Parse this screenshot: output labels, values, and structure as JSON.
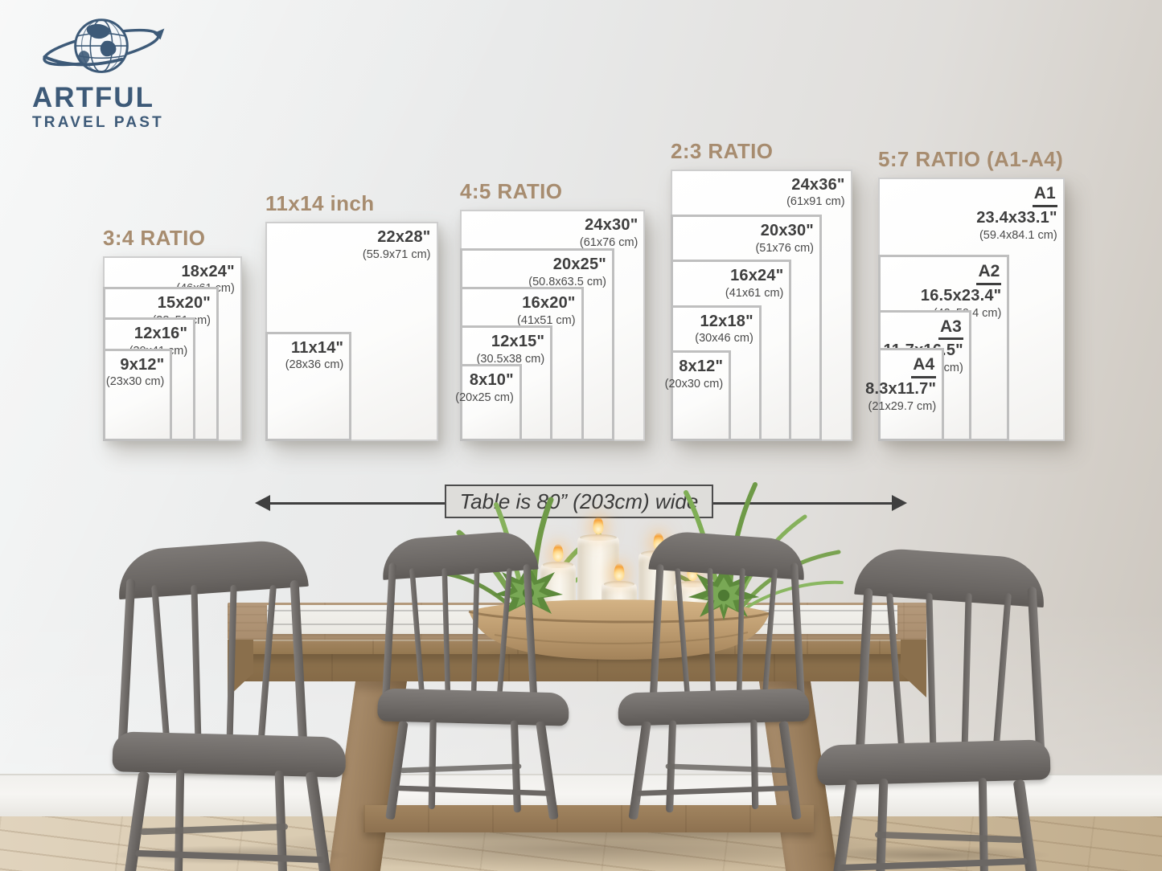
{
  "colors": {
    "title_accent": "#A78C6F",
    "label_text": "#3E3E3E",
    "cm_text": "#4A4A4A",
    "logo_blue": "#3D5A78",
    "sheet_border": "#BFBFBF",
    "arrow": "#3F3F3F"
  },
  "logo": {
    "icon": "globe-orbit-icon",
    "line1": "ARTFUL",
    "line2": "TRAVEL PAST"
  },
  "table_note": {
    "label": "Table is 80” (203cm) wide"
  },
  "chart_data": {
    "type": "size-comparison-diagram",
    "panels": [
      {
        "title": "3:4 RATIO",
        "sheets": [
          {
            "size_in": "18x24\"",
            "size_cm": "(46x61 cm)",
            "w_in": 18,
            "h_in": 24
          },
          {
            "size_in": "15x20\"",
            "size_cm": "(38x51 cm)",
            "w_in": 15,
            "h_in": 20
          },
          {
            "size_in": "12x16\"",
            "size_cm": "(30x41 cm)",
            "w_in": 12,
            "h_in": 16
          },
          {
            "size_in": "9x12\"",
            "size_cm": "(23x30 cm)",
            "w_in": 9,
            "h_in": 12
          }
        ]
      },
      {
        "title": "11x14 inch",
        "sheets": [
          {
            "size_in": "22x28\"",
            "size_cm": "(55.9x71 cm)",
            "w_in": 22,
            "h_in": 28
          },
          {
            "size_in": "11x14\"",
            "size_cm": "(28x36 cm)",
            "w_in": 11,
            "h_in": 14
          }
        ]
      },
      {
        "title": "4:5 RATIO",
        "sheets": [
          {
            "size_in": "24x30\"",
            "size_cm": "(61x76 cm)",
            "w_in": 24,
            "h_in": 30
          },
          {
            "size_in": "20x25\"",
            "size_cm": "(50.8x63.5 cm)",
            "w_in": 20,
            "h_in": 25
          },
          {
            "size_in": "16x20\"",
            "size_cm": "(41x51 cm)",
            "w_in": 16,
            "h_in": 20
          },
          {
            "size_in": "12x15\"",
            "size_cm": "(30.5x38 cm)",
            "w_in": 12,
            "h_in": 15
          },
          {
            "size_in": "8x10\"",
            "size_cm": "(20x25 cm)",
            "w_in": 8,
            "h_in": 10
          }
        ]
      },
      {
        "title": "2:3 RATIO",
        "sheets": [
          {
            "size_in": "24x36\"",
            "size_cm": "(61x91 cm)",
            "w_in": 24,
            "h_in": 36
          },
          {
            "size_in": "20x30\"",
            "size_cm": "(51x76 cm)",
            "w_in": 20,
            "h_in": 30
          },
          {
            "size_in": "16x24\"",
            "size_cm": "(41x61 cm)",
            "w_in": 16,
            "h_in": 24
          },
          {
            "size_in": "12x18\"",
            "size_cm": "(30x46 cm)",
            "w_in": 12,
            "h_in": 18
          },
          {
            "size_in": "8x12\"",
            "size_cm": "(20x30 cm)",
            "w_in": 8,
            "h_in": 12
          }
        ]
      },
      {
        "title": "5:7 RATIO (A1-A4)",
        "sheets": [
          {
            "name": "A1",
            "size_in": "23.4x33.1\"",
            "size_cm": "(59.4x84.1 cm)",
            "w_in": 23.4,
            "h_in": 33.1
          },
          {
            "name": "A2",
            "size_in": "16.5x23.4\"",
            "size_cm": "(42x59.4 cm)",
            "w_in": 16.5,
            "h_in": 23.4
          },
          {
            "name": "A3",
            "size_in": "11.7x16.5\"",
            "size_cm": "(29.7x42 cm)",
            "w_in": 11.7,
            "h_in": 16.5
          },
          {
            "name": "A4",
            "size_in": "8.3x11.7\"",
            "size_cm": "(21x29.7 cm)",
            "w_in": 8.3,
            "h_in": 11.7
          }
        ]
      }
    ]
  }
}
